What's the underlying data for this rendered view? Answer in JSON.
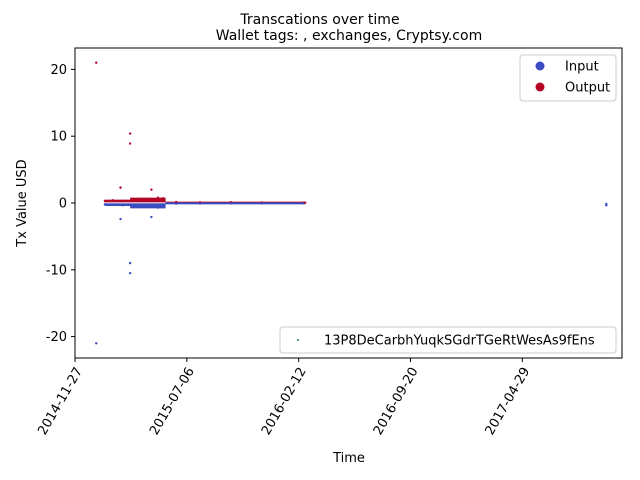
{
  "chart_data": {
    "type": "scatter",
    "suptitle": "Transcations over time",
    "title": "Wallet tags: , exchanges, Cryptsy.com",
    "xlabel": "Time",
    "ylabel": "Tx Value USD",
    "xlim": [
      "2014-11-27",
      "2017-11-12"
    ],
    "ylim": [
      -23.2,
      23.2
    ],
    "yticks": [
      -20,
      -10,
      0,
      10,
      20
    ],
    "xticks": [
      "2014-11-27",
      "2015-07-06",
      "2016-02-12",
      "2016-09-20",
      "2017-04-29"
    ],
    "legend_main": {
      "placement": "upper right",
      "entries": [
        {
          "label": "Input",
          "color": "#3b4cc0"
        },
        {
          "label": "Output",
          "color": "#b40426"
        }
      ]
    },
    "legend_address": {
      "placement": "lower right",
      "label": "13P8DeCarbhYuqkSGdrTGeRtWesAs9fEns",
      "color": "#1a7a6a"
    },
    "series": [
      {
        "name": "Output",
        "color": "#b40426",
        "points": [
          [
            "2015-01-08",
            21.0
          ],
          [
            "2015-03-16",
            10.4
          ],
          [
            "2015-03-16",
            8.9
          ],
          [
            "2015-02-25",
            2.3
          ],
          [
            "2015-04-27",
            2.0
          ],
          [
            "2015-01-25",
            0.3
          ],
          [
            "2015-02-10",
            0.4
          ],
          [
            "2015-03-01",
            0.35
          ],
          [
            "2015-03-20",
            0.5
          ],
          [
            "2015-04-05",
            0.45
          ],
          [
            "2015-04-25",
            0.6
          ],
          [
            "2015-05-10",
            0.8
          ],
          [
            "2015-05-20",
            0.7
          ],
          [
            "2015-06-15",
            0.15
          ],
          [
            "2015-08-01",
            0.1
          ],
          [
            "2015-10-01",
            0.12
          ],
          [
            "2015-12-01",
            0.08
          ],
          [
            "2016-02-20",
            0.05
          ],
          [
            "2016-02-25",
            0.05
          ]
        ]
      },
      {
        "name": "Input",
        "color": "#3b4cc0",
        "points": [
          [
            "2015-01-08",
            -21.0
          ],
          [
            "2015-03-16",
            -10.5
          ],
          [
            "2015-03-16",
            -9.0
          ],
          [
            "2015-02-25",
            -2.4
          ],
          [
            "2015-04-27",
            -2.1
          ],
          [
            "2015-01-25",
            -0.2
          ],
          [
            "2015-02-10",
            -0.3
          ],
          [
            "2015-03-01",
            -0.35
          ],
          [
            "2015-03-20",
            -0.5
          ],
          [
            "2015-04-05",
            -0.45
          ],
          [
            "2015-04-25",
            -0.6
          ],
          [
            "2015-05-10",
            -0.7
          ],
          [
            "2015-05-20",
            -0.65
          ],
          [
            "2015-06-15",
            -0.1
          ],
          [
            "2015-08-01",
            -0.08
          ],
          [
            "2015-10-01",
            -0.05
          ],
          [
            "2015-12-01",
            -0.06
          ],
          [
            "2016-02-20",
            -0.05
          ],
          [
            "2017-10-12",
            -0.15
          ],
          [
            "2017-10-12",
            -0.35
          ]
        ]
      }
    ],
    "bands": [
      {
        "series": "Output",
        "color": "#b40426",
        "x0": "2015-01-25",
        "x1": "2015-05-25",
        "y": 0.3,
        "thickness_data": 0.4
      },
      {
        "series": "Output",
        "color": "#b40426",
        "x0": "2015-03-16",
        "x1": "2015-05-25",
        "y": 0.55,
        "thickness_data": 0.5
      },
      {
        "series": "Output",
        "color": "#b40426",
        "x0": "2015-05-25",
        "x1": "2016-02-25",
        "y": 0.05,
        "thickness_data": 0.25
      },
      {
        "series": "Input",
        "color": "#3b4cc0",
        "x0": "2015-01-25",
        "x1": "2015-05-25",
        "y": -0.25,
        "thickness_data": 0.4
      },
      {
        "series": "Input",
        "color": "#3b4cc0",
        "x0": "2015-03-16",
        "x1": "2015-05-25",
        "y": -0.55,
        "thickness_data": 0.5
      },
      {
        "series": "Input",
        "color": "#3b4cc0",
        "x0": "2015-05-25",
        "x1": "2016-02-25",
        "y": -0.05,
        "thickness_data": 0.25
      }
    ]
  }
}
